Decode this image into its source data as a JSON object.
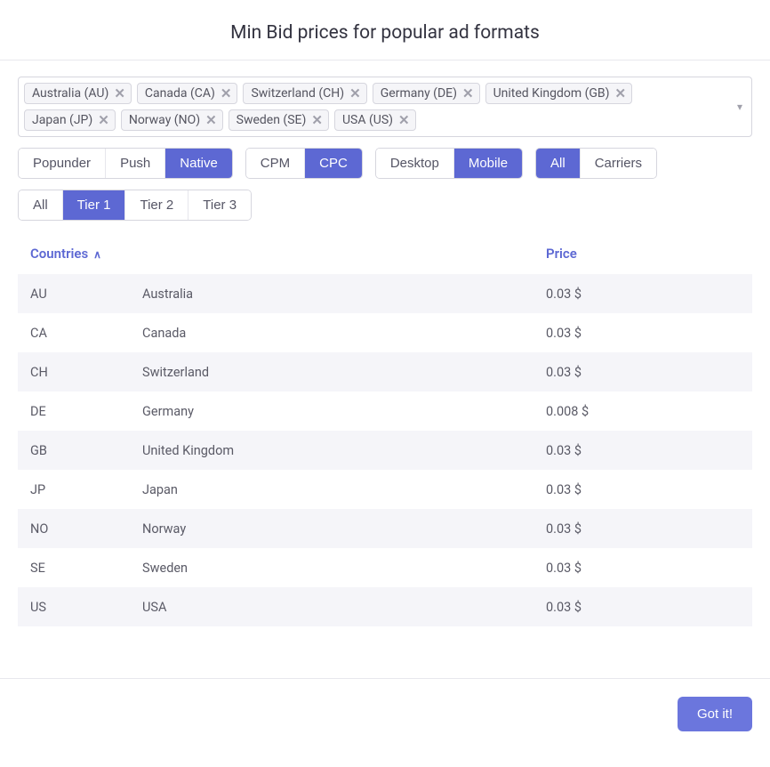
{
  "title": "Min Bid prices for popular ad formats",
  "tags": [
    {
      "label": "Australia (AU)"
    },
    {
      "label": "Canada (CA)"
    },
    {
      "label": "Switzerland (CH)"
    },
    {
      "label": "Germany (DE)"
    },
    {
      "label": "United Kingdom (GB)"
    },
    {
      "label": "Japan (JP)"
    },
    {
      "label": "Norway (NO)"
    },
    {
      "label": "Sweden (SE)"
    },
    {
      "label": "USA (US)"
    }
  ],
  "filters": {
    "format": {
      "options": [
        "Popunder",
        "Push",
        "Native"
      ],
      "active": 2
    },
    "bid": {
      "options": [
        "CPM",
        "CPC"
      ],
      "active": 1
    },
    "device": {
      "options": [
        "Desktop",
        "Mobile"
      ],
      "active": 1
    },
    "carrier": {
      "options": [
        "All",
        "Carriers"
      ],
      "active": 0
    },
    "tier": {
      "options": [
        "All",
        "Tier 1",
        "Tier 2",
        "Tier 3"
      ],
      "active": 1
    }
  },
  "table": {
    "head_countries": "Countries",
    "head_price": "Price",
    "rows": [
      {
        "code": "AU",
        "name": "Australia",
        "price": "0.03 $"
      },
      {
        "code": "CA",
        "name": "Canada",
        "price": "0.03 $"
      },
      {
        "code": "CH",
        "name": "Switzerland",
        "price": "0.03 $"
      },
      {
        "code": "DE",
        "name": "Germany",
        "price": "0.008 $"
      },
      {
        "code": "GB",
        "name": "United Kingdom",
        "price": "0.03 $"
      },
      {
        "code": "JP",
        "name": "Japan",
        "price": "0.03 $"
      },
      {
        "code": "NO",
        "name": "Norway",
        "price": "0.03 $"
      },
      {
        "code": "SE",
        "name": "Sweden",
        "price": "0.03 $"
      },
      {
        "code": "US",
        "name": "USA",
        "price": "0.03 $"
      }
    ]
  },
  "footer": {
    "gotit": "Got it!"
  },
  "colors": {
    "accent": "#5d68d3",
    "tag_bg": "#f5f5f8",
    "border": "#d6d6de",
    "row_stripe": "#f5f5f9",
    "text": "#555565"
  }
}
